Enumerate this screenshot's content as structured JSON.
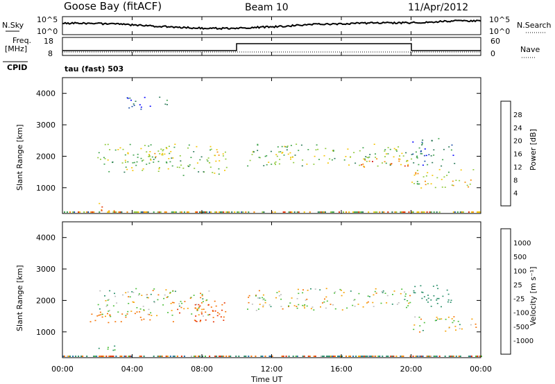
{
  "header": {
    "station": "Goose Bay (fitACF)",
    "beam": "Beam 10",
    "date": "11/Apr/2012"
  },
  "top_panels": {
    "nsky_label": "N.Sky",
    "nsky_ticks": [
      "10^5",
      "10^0"
    ],
    "nsearch_label": "N.Search",
    "nsearch_ticks": [
      "10^5",
      "10^0"
    ],
    "freq_label_1": "Freq.",
    "freq_label_2": "[MHz]",
    "freq_ticks": [
      "18",
      "8"
    ],
    "nave_label": "Nave",
    "nave_ticks": [
      "60",
      "0"
    ],
    "cpid_label": "CPID",
    "cpid_text": "tau (fast) 503"
  },
  "x_axis": {
    "ticks": [
      "00:00",
      "04:00",
      "08:00",
      "12:00",
      "16:00",
      "20:00",
      "00:00"
    ],
    "label": "Time UT"
  },
  "power_panel": {
    "ylabel": "Slant Range [km]",
    "yticks": [
      "4000",
      "3000",
      "2000",
      "1000"
    ],
    "colorbar_label": "Power [dB]",
    "colorbar_ticks": [
      "28",
      "24",
      "20",
      "16",
      "12",
      "8",
      "4"
    ],
    "colors": [
      "#0000ff",
      "#1c4fa8",
      "#2d7a5a",
      "#3fa34d",
      "#8fc93a",
      "#f5c400",
      "#f58a00",
      "#e53000",
      "#d40000"
    ]
  },
  "velocity_panel": {
    "ylabel": "Slant Range [km]",
    "yticks": [
      "4000",
      "3000",
      "2000",
      "1000"
    ],
    "colorbar_label": "Velocity [m s⁻¹]",
    "colorbar_ticks": [
      "1000",
      "500",
      "100",
      "25",
      "-25",
      "-100",
      "-500",
      "-1000"
    ],
    "colors": [
      "#1c3fc0",
      "#1f6fa8",
      "#2a8f6a",
      "#4cbf3a",
      "#bebebe",
      "#f5a000",
      "#f57000",
      "#e53000",
      "#d40000"
    ]
  },
  "chart_data": [
    {
      "type": "heatmap",
      "title": "Power",
      "x_range_hours": [
        0,
        24
      ],
      "y_range_km": [
        180,
        4500
      ],
      "colorbar_range_db": [
        0,
        30
      ],
      "scatter_regions": [
        {
          "t0": 2.0,
          "t1": 8.5,
          "r0": 1500,
          "r1": 2400,
          "v": 14
        },
        {
          "t0": 4.0,
          "t1": 6.5,
          "r0": 2000,
          "r1": 2300,
          "v": 18
        },
        {
          "t0": 8.5,
          "t1": 9.5,
          "r0": 1300,
          "r1": 2300,
          "v": 16
        },
        {
          "t0": 6.5,
          "t1": 7.0,
          "r0": 1400,
          "r1": 1700,
          "v": 14
        },
        {
          "t0": 10.5,
          "t1": 20.0,
          "r0": 1700,
          "r1": 2400,
          "v": 14
        },
        {
          "t0": 17.0,
          "t1": 19.8,
          "r0": 1650,
          "r1": 1950,
          "v": 22
        },
        {
          "t0": 20.0,
          "t1": 23.8,
          "r0": 1000,
          "r1": 1600,
          "v": 18
        },
        {
          "t0": 20.0,
          "t1": 22.5,
          "r0": 1700,
          "r1": 2600,
          "v": 8
        },
        {
          "t0": 2.0,
          "t1": 3.0,
          "r0": 250,
          "r1": 600,
          "v": 20
        },
        {
          "t0": 3.5,
          "t1": 6.0,
          "r0": 3500,
          "r1": 3900,
          "v": 6
        }
      ]
    },
    {
      "type": "heatmap",
      "title": "Velocity",
      "x_range_hours": [
        0,
        24
      ],
      "y_range_km": [
        180,
        4500
      ],
      "colorbar_range_ms": [
        -1000,
        1000
      ],
      "scatter_regions": [
        {
          "t0": 2.0,
          "t1": 8.5,
          "r0": 1500,
          "r1": 2400,
          "v": 0
        },
        {
          "t0": 1.5,
          "t1": 5.0,
          "r0": 1300,
          "r1": 1700,
          "v": -300
        },
        {
          "t0": 6.0,
          "t1": 9.5,
          "r0": 1300,
          "r1": 2000,
          "v": -500
        },
        {
          "t0": 10.5,
          "t1": 20.0,
          "r0": 1700,
          "r1": 2400,
          "v": 0
        },
        {
          "t0": 20.0,
          "t1": 22.5,
          "r0": 1800,
          "r1": 2500,
          "v": 300
        },
        {
          "t0": 20.0,
          "t1": 23.8,
          "r0": 1000,
          "r1": 1500,
          "v": 0
        },
        {
          "t0": 2.0,
          "t1": 3.0,
          "r0": 250,
          "r1": 600,
          "v": 200
        }
      ]
    }
  ]
}
